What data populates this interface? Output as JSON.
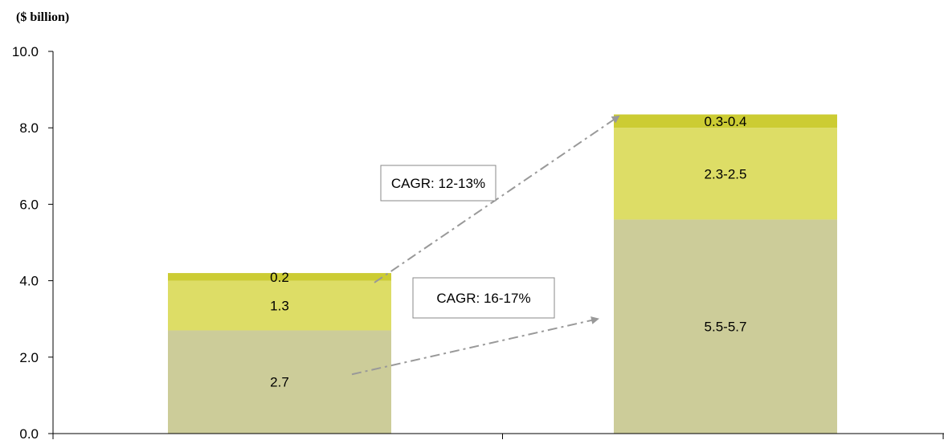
{
  "chart_data": {
    "type": "bar",
    "stacked": true,
    "unit_label": "($ billion)",
    "ylim": [
      0,
      10
    ],
    "yticks": [
      "0.0",
      "2.0",
      "4.0",
      "6.0",
      "8.0",
      "10.0"
    ],
    "categories": [
      "",
      ""
    ],
    "series": [
      {
        "values": [
          2.7,
          5.6
        ],
        "labels": [
          "2.7",
          "5.5-5.7"
        ],
        "color": "#cccc99"
      },
      {
        "values": [
          1.3,
          2.4
        ],
        "labels": [
          "1.3",
          "2.3-2.5"
        ],
        "color": "#dddd66"
      },
      {
        "values": [
          0.2,
          0.35
        ],
        "labels": [
          "0.2",
          "0.3-0.4"
        ],
        "color": "#cccc33"
      }
    ],
    "annotations": [
      {
        "text": "CAGR: 12-13%",
        "from_value": 3.95,
        "to_value": 8.3
      },
      {
        "text": "CAGR: 16-17%",
        "from_value": 1.55,
        "to_value": 3.0
      }
    ],
    "grid": false,
    "legend": "none"
  }
}
